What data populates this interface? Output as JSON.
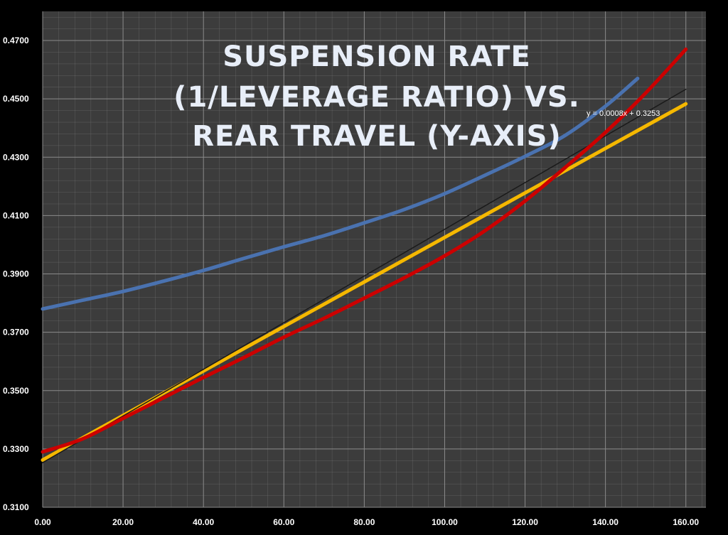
{
  "chart_data": {
    "type": "line",
    "title_lines": [
      "SUSPENSION RATE",
      "(1/LEVERAGE RATIO) VS.",
      "REAR TRAVEL (Y-AXIS)"
    ],
    "xlabel": "",
    "ylabel": "",
    "xlim": [
      0,
      165
    ],
    "ylim": [
      0.31,
      0.48
    ],
    "x_ticks": [
      0,
      20,
      40,
      60,
      80,
      100,
      120,
      140,
      160
    ],
    "x_tick_labels": [
      "0.00",
      "20.00",
      "40.00",
      "60.00",
      "80.00",
      "100.00",
      "120.00",
      "140.00",
      "160.00"
    ],
    "y_ticks": [
      0.31,
      0.33,
      0.35,
      0.37,
      0.39,
      0.41,
      0.43,
      0.45,
      0.47
    ],
    "y_tick_labels": [
      "0.3100",
      "0.3300",
      "0.3500",
      "0.3700",
      "0.3900",
      "0.4100",
      "0.4300",
      "0.4500",
      "0.4700"
    ],
    "grid": true,
    "grid_color": "#8a8a8a",
    "plot_background": "#3c3c3c",
    "page_background": "#000000",
    "series": [
      {
        "color": "#4a72b0",
        "x": [
          0,
          10,
          20,
          30,
          40,
          50,
          60,
          70,
          80,
          90,
          100,
          110,
          120,
          130,
          140,
          148
        ],
        "y": [
          0.378,
          0.381,
          0.384,
          0.3875,
          0.3912,
          0.3953,
          0.3993,
          0.4031,
          0.4075,
          0.4121,
          0.4175,
          0.4238,
          0.4303,
          0.4375,
          0.4475,
          0.457
        ]
      },
      {
        "color": "#cc0000",
        "x": [
          0,
          10,
          20,
          30,
          40,
          50,
          60,
          70,
          80,
          90,
          100,
          110,
          120,
          130,
          140,
          150,
          160
        ],
        "y": [
          0.329,
          0.3335,
          0.3405,
          0.3475,
          0.3545,
          0.3613,
          0.3683,
          0.3748,
          0.3817,
          0.3887,
          0.3962,
          0.4048,
          0.415,
          0.4265,
          0.4385,
          0.452,
          0.467
        ]
      },
      {
        "color": "#f5b800",
        "x": [
          0,
          160
        ],
        "y": [
          0.3262,
          0.4483
        ]
      },
      {
        "color": "#1a1a1a",
        "x": [
          0,
          160
        ],
        "y": [
          0.3253,
          0.4533
        ]
      }
    ],
    "trendline_label": "y = 0.0008x + 0.3253"
  }
}
